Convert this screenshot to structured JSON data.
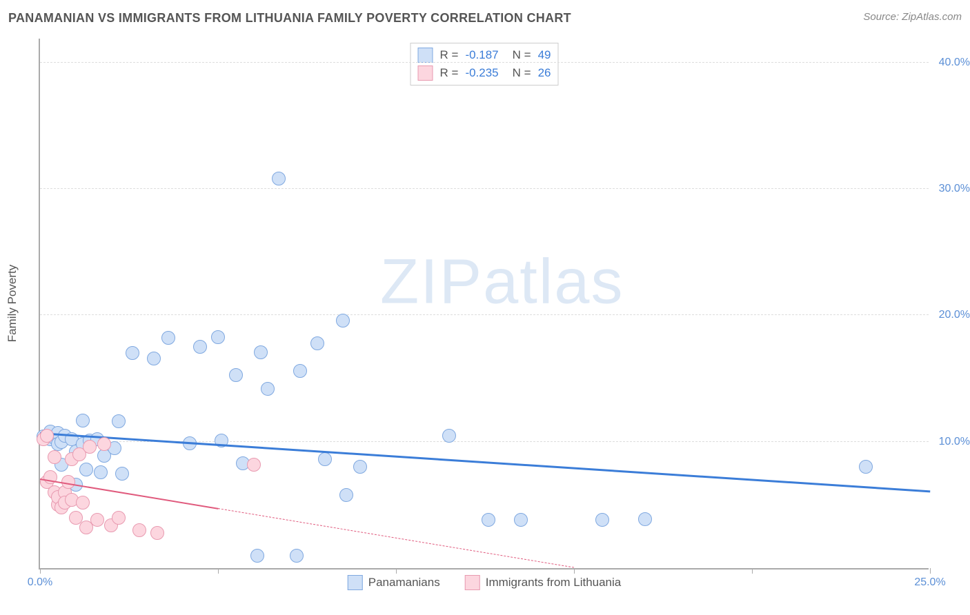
{
  "title": "PANAMANIAN VS IMMIGRANTS FROM LITHUANIA FAMILY POVERTY CORRELATION CHART",
  "source_label": "Source: ",
  "source_name": "ZipAtlas.com",
  "watermark": {
    "prefix": "ZIP",
    "suffix": "atlas"
  },
  "yaxis_title": "Family Poverty",
  "chart": {
    "type": "scatter-with-trend",
    "xlim": [
      0,
      25
    ],
    "ylim": [
      0,
      42
    ],
    "xticks": [
      0,
      5,
      10,
      15,
      20,
      25
    ],
    "xtick_labels": [
      "0.0%",
      "",
      "",
      "",
      "",
      "25.0%"
    ],
    "yticks": [
      10,
      20,
      30,
      40
    ],
    "ytick_labels": [
      "10.0%",
      "20.0%",
      "30.0%",
      "40.0%"
    ],
    "grid_color": "#dddddd",
    "axis_color": "#aaaaaa",
    "background": "#ffffff",
    "tick_label_color": "#5b8fd6",
    "point_radius": 10,
    "point_border_width": 1.5,
    "series": [
      {
        "name": "Panamanians",
        "fill": "#cfe0f7",
        "stroke": "#7fa8e0",
        "trend_color": "#3b7dd8",
        "trend_width": 3,
        "trend_dash": "solid",
        "R": "-0.187",
        "N": "49",
        "trend": {
          "x1": 0,
          "y1": 10.6,
          "x2": 25,
          "y2": 6.0
        },
        "points": [
          [
            0.1,
            10.4
          ],
          [
            0.2,
            10.5
          ],
          [
            0.3,
            10.2
          ],
          [
            0.3,
            10.8
          ],
          [
            0.4,
            10.3
          ],
          [
            0.5,
            10.7
          ],
          [
            0.5,
            9.8
          ],
          [
            0.6,
            10.0
          ],
          [
            0.6,
            8.2
          ],
          [
            0.7,
            10.5
          ],
          [
            0.9,
            10.2
          ],
          [
            1.0,
            9.2
          ],
          [
            1.0,
            6.6
          ],
          [
            1.2,
            9.8
          ],
          [
            1.2,
            11.7
          ],
          [
            1.3,
            7.8
          ],
          [
            1.4,
            10.1
          ],
          [
            1.6,
            10.2
          ],
          [
            1.7,
            7.6
          ],
          [
            1.8,
            8.9
          ],
          [
            2.1,
            9.5
          ],
          [
            2.2,
            11.6
          ],
          [
            2.3,
            7.5
          ],
          [
            2.6,
            17.0
          ],
          [
            3.2,
            16.6
          ],
          [
            3.6,
            18.2
          ],
          [
            4.2,
            9.9
          ],
          [
            4.5,
            17.5
          ],
          [
            5.0,
            18.3
          ],
          [
            5.1,
            10.1
          ],
          [
            5.5,
            15.3
          ],
          [
            5.7,
            8.3
          ],
          [
            6.1,
            1.0
          ],
          [
            6.2,
            17.1
          ],
          [
            6.4,
            14.2
          ],
          [
            6.7,
            30.8
          ],
          [
            7.2,
            1.0
          ],
          [
            7.3,
            15.6
          ],
          [
            7.8,
            17.8
          ],
          [
            8.0,
            8.6
          ],
          [
            8.5,
            19.6
          ],
          [
            8.6,
            5.8
          ],
          [
            9.0,
            8.0
          ],
          [
            11.5,
            10.5
          ],
          [
            12.6,
            3.8
          ],
          [
            13.5,
            3.8
          ],
          [
            15.8,
            3.8
          ],
          [
            17.0,
            3.9
          ],
          [
            23.2,
            8.0
          ]
        ]
      },
      {
        "name": "Immigrants from Lithuania",
        "fill": "#fcd6df",
        "stroke": "#e89ab0",
        "trend_color": "#e05a7d",
        "trend_width": 2,
        "trend_dash": "solid-then-dashed",
        "R": "-0.235",
        "N": "26",
        "trend": {
          "x1": 0,
          "y1": 7.0,
          "x2": 15,
          "y2": 0.0,
          "x_solid_end": 5.0
        },
        "points": [
          [
            0.1,
            10.2
          ],
          [
            0.2,
            10.5
          ],
          [
            0.2,
            6.8
          ],
          [
            0.3,
            7.2
          ],
          [
            0.4,
            6.0
          ],
          [
            0.4,
            8.8
          ],
          [
            0.5,
            5.0
          ],
          [
            0.5,
            5.6
          ],
          [
            0.6,
            4.8
          ],
          [
            0.7,
            6.0
          ],
          [
            0.7,
            5.2
          ],
          [
            0.8,
            6.8
          ],
          [
            0.9,
            5.4
          ],
          [
            0.9,
            8.6
          ],
          [
            1.0,
            4.0
          ],
          [
            1.1,
            9.0
          ],
          [
            1.2,
            5.2
          ],
          [
            1.3,
            3.2
          ],
          [
            1.4,
            9.6
          ],
          [
            1.6,
            3.8
          ],
          [
            1.8,
            9.8
          ],
          [
            2.0,
            3.4
          ],
          [
            2.2,
            4.0
          ],
          [
            2.8,
            3.0
          ],
          [
            3.3,
            2.8
          ],
          [
            6.0,
            8.2
          ]
        ]
      }
    ]
  },
  "legend_top": {
    "r_label": "R =",
    "n_label": "N ="
  },
  "legend_bottom": {
    "items": [
      "Panamanians",
      "Immigrants from Lithuania"
    ]
  }
}
